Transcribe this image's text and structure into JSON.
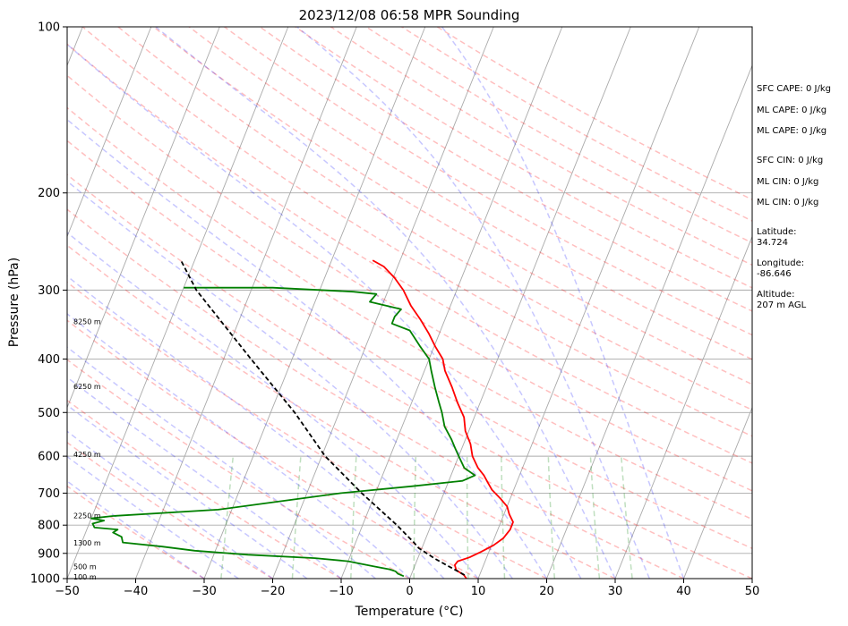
{
  "chart_data": {
    "type": "line",
    "title": "2023/12/08 06:58 MPR Sounding",
    "xlabel": "Temperature (°C)",
    "ylabel": "Pressure (hPa)",
    "xlim": [
      -50,
      50
    ],
    "ylim": [
      1000,
      100
    ],
    "y_scale": "log",
    "grid": true,
    "x_ticks": [
      -50,
      -40,
      -30,
      -20,
      -10,
      0,
      10,
      20,
      30,
      40,
      50
    ],
    "y_ticks": [
      1000,
      900,
      800,
      700,
      600,
      500,
      400,
      300,
      200,
      100
    ],
    "height_labels": [
      {
        "p": 996,
        "text": "100 m"
      },
      {
        "p": 955,
        "text": "500 m"
      },
      {
        "p": 865,
        "text": "1300 m"
      },
      {
        "p": 772,
        "text": "2250 m"
      },
      {
        "p": 598,
        "text": "4250 m"
      },
      {
        "p": 450,
        "text": "6250 m"
      },
      {
        "p": 343,
        "text": "8250 m"
      }
    ],
    "side_info": [
      "SFC CAPE: 0 J/kg",
      "ML CAPE: 0 J/kg",
      "ML CAPE: 0 J/kg",
      "SFC CIN: 0 J/kg",
      "ML CIN: 0 J/kg",
      "ML CIN: 0 J/kg",
      "Latitude:",
      "34.724",
      "Longitude:",
      "-86.646",
      "Altitude:",
      "207 m AGL"
    ],
    "series": [
      {
        "kind": "temperature",
        "color": "#ff0000",
        "points": [
          [
            1000,
            8.3
          ],
          [
            985,
            7.7
          ],
          [
            965,
            6.3
          ],
          [
            945,
            5.8
          ],
          [
            930,
            6.0
          ],
          [
            915,
            7.5
          ],
          [
            895,
            8.8
          ],
          [
            870,
            10.3
          ],
          [
            845,
            11.3
          ],
          [
            815,
            11.8
          ],
          [
            790,
            11.8
          ],
          [
            765,
            10.8
          ],
          [
            740,
            10.0
          ],
          [
            715,
            8.5
          ],
          [
            690,
            6.8
          ],
          [
            670,
            5.8
          ],
          [
            650,
            4.8
          ],
          [
            630,
            3.5
          ],
          [
            600,
            2.0
          ],
          [
            570,
            1.0
          ],
          [
            540,
            -0.5
          ],
          [
            510,
            -1.5
          ],
          [
            480,
            -3.3
          ],
          [
            450,
            -5.0
          ],
          [
            420,
            -7.0
          ],
          [
            400,
            -8.0
          ],
          [
            380,
            -9.8
          ],
          [
            360,
            -11.5
          ],
          [
            340,
            -13.5
          ],
          [
            320,
            -15.8
          ],
          [
            300,
            -17.8
          ],
          [
            285,
            -19.8
          ],
          [
            272,
            -22.0
          ],
          [
            265,
            -24.0
          ]
        ]
      },
      {
        "kind": "dewpoint",
        "color": "#008000",
        "points": [
          [
            990,
            -1.0
          ],
          [
            980,
            -2.0
          ],
          [
            970,
            -2.5
          ],
          [
            962,
            -3.5
          ],
          [
            950,
            -6.0
          ],
          [
            930,
            -10.0
          ],
          [
            918,
            -15.0
          ],
          [
            905,
            -25.0
          ],
          [
            890,
            -33.0
          ],
          [
            875,
            -38.0
          ],
          [
            860,
            -44.0
          ],
          [
            840,
            -44.5
          ],
          [
            825,
            -46.0
          ],
          [
            815,
            -45.5
          ],
          [
            808,
            -49.0
          ],
          [
            795,
            -49.5
          ],
          [
            785,
            -48.0
          ],
          [
            778,
            -50.0
          ],
          [
            770,
            -47.0
          ],
          [
            750,
            -32.0
          ],
          [
            720,
            -22.0
          ],
          [
            700,
            -15.0
          ],
          [
            680,
            -5.0
          ],
          [
            665,
            2.0
          ],
          [
            650,
            3.5
          ],
          [
            630,
            1.5
          ],
          [
            600,
            0.0
          ],
          [
            580,
            -1.0
          ],
          [
            560,
            -2.0
          ],
          [
            530,
            -3.8
          ],
          [
            500,
            -5.0
          ],
          [
            480,
            -6.0
          ],
          [
            450,
            -7.5
          ],
          [
            420,
            -9.0
          ],
          [
            400,
            -10.0
          ],
          [
            380,
            -12.0
          ],
          [
            355,
            -14.5
          ],
          [
            345,
            -17.5
          ],
          [
            335,
            -17.5
          ],
          [
            325,
            -17.0
          ],
          [
            315,
            -22.0
          ],
          [
            305,
            -21.5
          ],
          [
            302,
            -25.0
          ],
          [
            297,
            -37.0
          ],
          [
            297,
            -50.0
          ]
        ]
      },
      {
        "kind": "parcel",
        "color": "#000000",
        "style": "dashed",
        "points": [
          [
            985,
            7.8
          ],
          [
            950,
            5.0
          ],
          [
            920,
            2.5
          ],
          [
            880,
            -0.5
          ],
          [
            860,
            -1.5
          ],
          [
            800,
            -5.0
          ],
          [
            700,
            -12.0
          ],
          [
            600,
            -19.5
          ],
          [
            500,
            -26.5
          ],
          [
            400,
            -36.0
          ],
          [
            300,
            -48.0
          ],
          [
            265,
            -52.0
          ]
        ]
      }
    ]
  }
}
